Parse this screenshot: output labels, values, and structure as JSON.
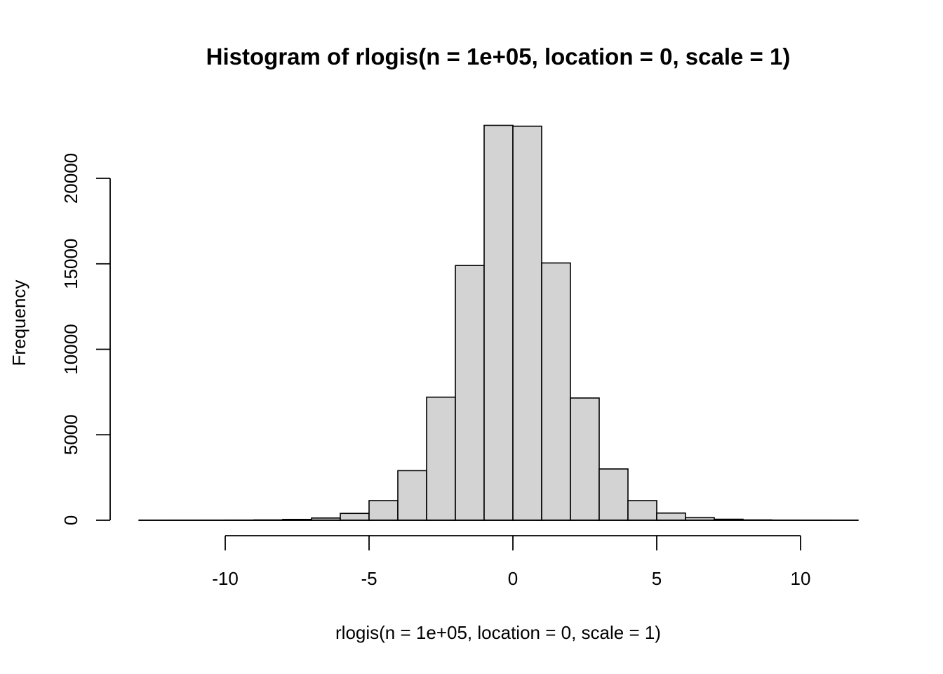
{
  "chart_data": {
    "type": "bar",
    "title": "Histogram of rlogis(n = 1e+05, location = 0, scale = 1)",
    "xlabel": "rlogis(n = 1e+05, location = 0, scale = 1)",
    "ylabel": "Frequency",
    "xlim": [
      -13,
      12
    ],
    "ylim": [
      0,
      23000
    ],
    "x_ticks": [
      -10,
      -5,
      0,
      5,
      10
    ],
    "y_ticks": [
      0,
      5000,
      10000,
      15000,
      20000
    ],
    "bins": [
      {
        "x0": -13,
        "x1": -12,
        "value": 2
      },
      {
        "x0": -12,
        "x1": -11,
        "value": 3
      },
      {
        "x0": -11,
        "x1": -10,
        "value": 5
      },
      {
        "x0": -10,
        "x1": -9,
        "value": 10
      },
      {
        "x0": -9,
        "x1": -8,
        "value": 20
      },
      {
        "x0": -8,
        "x1": -7,
        "value": 50
      },
      {
        "x0": -7,
        "x1": -6,
        "value": 130
      },
      {
        "x0": -6,
        "x1": -5,
        "value": 400
      },
      {
        "x0": -5,
        "x1": -4,
        "value": 1150
      },
      {
        "x0": -4,
        "x1": -3,
        "value": 2900
      },
      {
        "x0": -3,
        "x1": -2,
        "value": 7200
      },
      {
        "x0": -2,
        "x1": -1,
        "value": 14900
      },
      {
        "x0": -1,
        "x1": 0,
        "value": 23100
      },
      {
        "x0": 0,
        "x1": 1,
        "value": 23050
      },
      {
        "x0": 1,
        "x1": 2,
        "value": 15050
      },
      {
        "x0": 2,
        "x1": 3,
        "value": 7150
      },
      {
        "x0": 3,
        "x1": 4,
        "value": 3000
      },
      {
        "x0": 4,
        "x1": 5,
        "value": 1150
      },
      {
        "x0": 5,
        "x1": 6,
        "value": 420
      },
      {
        "x0": 6,
        "x1": 7,
        "value": 150
      },
      {
        "x0": 7,
        "x1": 8,
        "value": 60
      },
      {
        "x0": 8,
        "x1": 9,
        "value": 20
      },
      {
        "x0": 9,
        "x1": 10,
        "value": 8
      },
      {
        "x0": 10,
        "x1": 11,
        "value": 3
      },
      {
        "x0": 11,
        "x1": 12,
        "value": 2
      }
    ],
    "bar_fill": "#d3d3d3",
    "bar_stroke": "#000000",
    "grid": false,
    "legend": "none"
  }
}
